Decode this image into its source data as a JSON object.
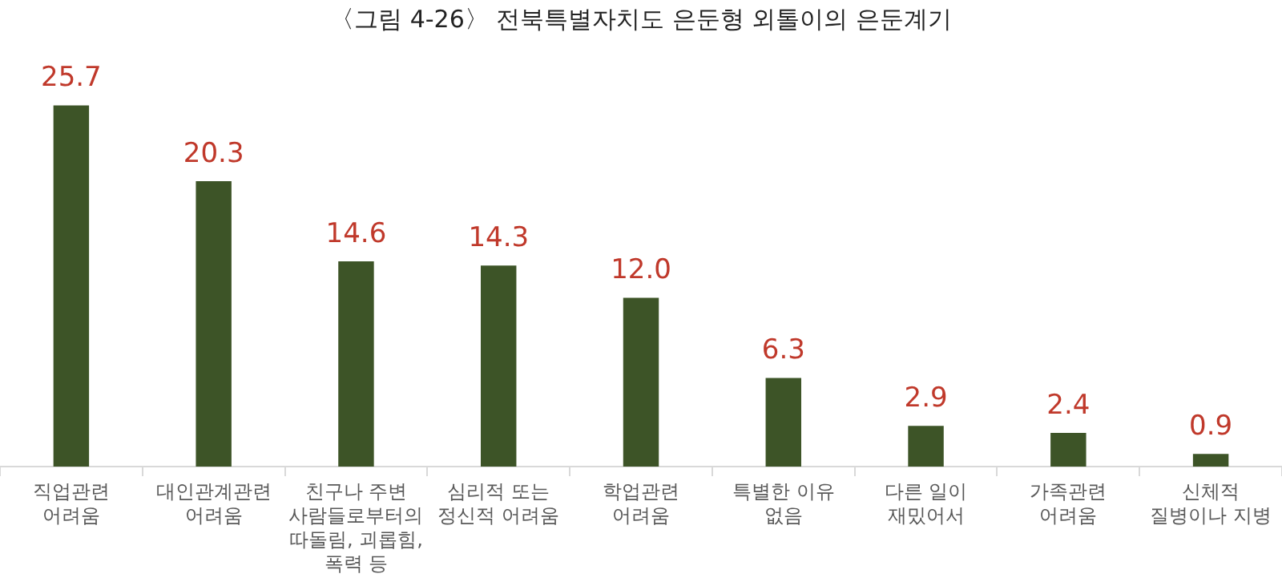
{
  "chart_data": {
    "type": "bar",
    "title": "〈그림 4-26〉 전북특별자치도 은둔형 외톨이의 은둔계기",
    "categories": [
      "직업관련\n어려움",
      "대인관계관련\n어려움",
      "친구나 주변\n사람들로부터의\n따돌림, 괴롭힘,\n폭력 등",
      "심리적 또는\n정신적 어려움",
      "학업관련\n어려움",
      "특별한 이유\n없음",
      "다른 일이\n재밌어서",
      "가족관련\n어려움",
      "신체적\n질병이나 지병"
    ],
    "values": [
      25.7,
      20.3,
      14.6,
      14.3,
      12.0,
      6.3,
      2.9,
      2.4,
      0.9
    ],
    "value_labels": [
      "25.7",
      "20.3",
      "14.6",
      "14.3",
      "12.0",
      "6.3",
      "2.9",
      "2.4",
      "0.9"
    ],
    "color": "#3d5427"
  }
}
